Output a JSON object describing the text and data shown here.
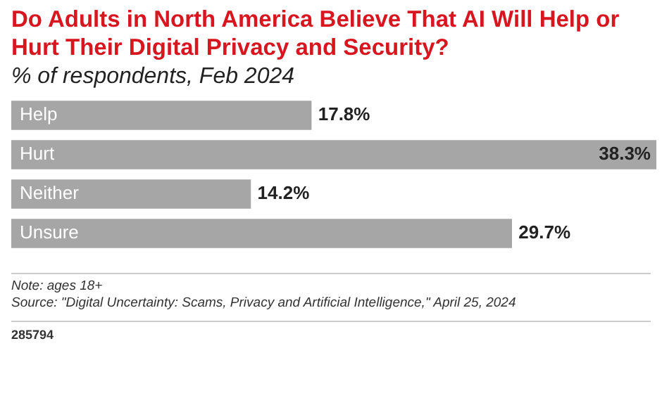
{
  "chart_data": {
    "type": "bar",
    "orientation": "horizontal",
    "title": "Do Adults in North America Believe That AI Will Help or Hurt Their Digital Privacy and Security?",
    "subtitle": "% of respondents, Feb 2024",
    "categories": [
      "Help",
      "Hurt",
      "Neither",
      "Unsure"
    ],
    "values": [
      17.8,
      38.3,
      14.2,
      29.7
    ],
    "value_labels": [
      "17.8%",
      "38.3%",
      "14.2%",
      "29.7%"
    ],
    "color": "#a6a6a6",
    "annotations": [
      "Note: ages 18+",
      "Source: \"Digital Uncertainty: Scams, Privacy and Artificial Intelligence,\" April 25, 2024",
      "285794"
    ]
  }
}
